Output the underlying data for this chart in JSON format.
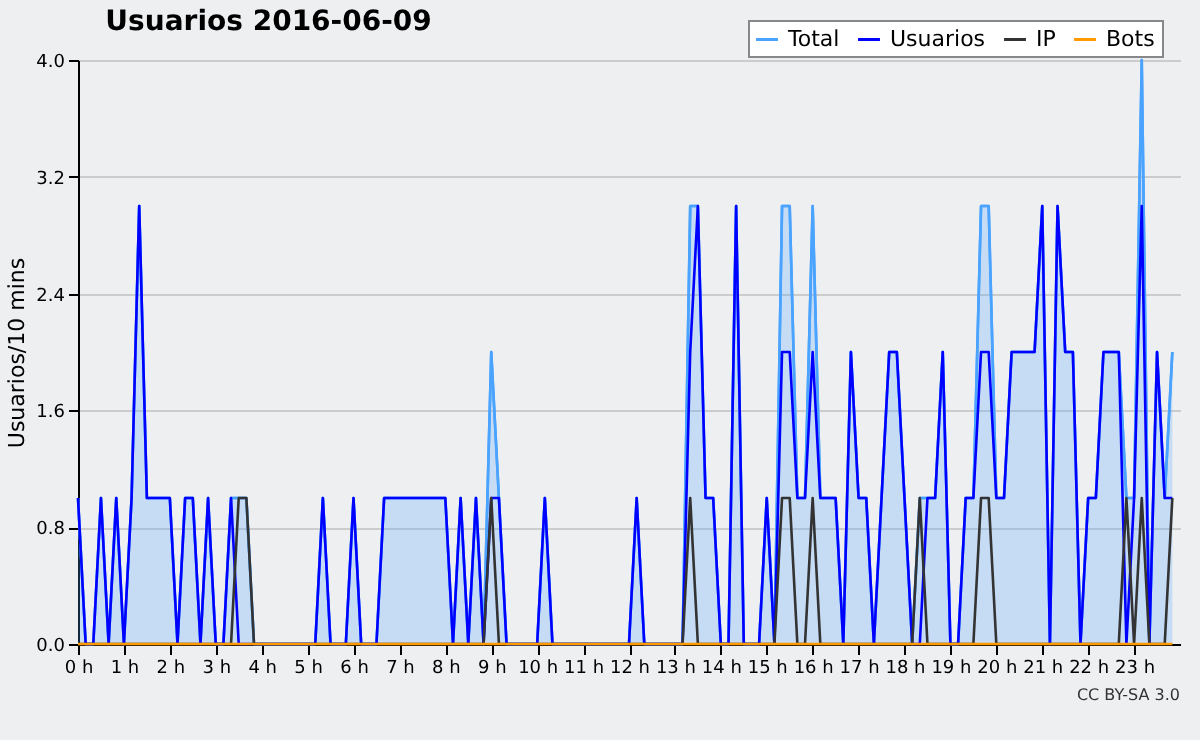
{
  "chart_data": {
    "type": "line",
    "title": "Usuarios  2016-06-09",
    "ylabel": "Usuarios/10 mins",
    "x": [
      0,
      0.167,
      0.333,
      0.5,
      0.667,
      0.833,
      1,
      1.167,
      1.333,
      1.5,
      1.667,
      1.833,
      2,
      2.167,
      2.333,
      2.5,
      2.667,
      2.833,
      3,
      3.167,
      3.333,
      3.5,
      3.667,
      3.833,
      4,
      4.167,
      4.333,
      4.5,
      4.667,
      4.833,
      5,
      5.167,
      5.333,
      5.5,
      5.667,
      5.833,
      6,
      6.167,
      6.333,
      6.5,
      6.667,
      6.833,
      7,
      7.167,
      7.333,
      7.5,
      7.667,
      7.833,
      8,
      8.167,
      8.333,
      8.5,
      8.667,
      8.833,
      9,
      9.167,
      9.333,
      9.5,
      9.667,
      9.833,
      10,
      10.167,
      10.333,
      10.5,
      10.667,
      10.833,
      11,
      11.167,
      11.333,
      11.5,
      11.667,
      11.833,
      12,
      12.167,
      12.333,
      12.5,
      12.667,
      12.833,
      13,
      13.167,
      13.333,
      13.5,
      13.667,
      13.833,
      14,
      14.167,
      14.333,
      14.5,
      14.667,
      14.833,
      15,
      15.167,
      15.333,
      15.5,
      15.667,
      15.833,
      16,
      16.167,
      16.333,
      16.5,
      16.667,
      16.833,
      17,
      17.167,
      17.333,
      17.5,
      17.667,
      17.833,
      18,
      18.167,
      18.333,
      18.5,
      18.667,
      18.833,
      19,
      19.167,
      19.333,
      19.5,
      19.667,
      19.833,
      20,
      20.167,
      20.333,
      20.5,
      20.667,
      20.833,
      21,
      21.167,
      21.333,
      21.5,
      21.667,
      21.833,
      22,
      22.167,
      22.333,
      22.5,
      22.667,
      22.833,
      23,
      23.167,
      23.333,
      23.5,
      23.667,
      23.833
    ],
    "series": [
      {
        "name": "Total",
        "type": "area",
        "color": "#4aa3ff",
        "values": [
          1,
          0,
          0,
          1,
          0,
          1,
          0,
          1,
          3,
          1,
          1,
          1,
          1,
          0,
          1,
          1,
          0,
          1,
          0,
          0,
          1,
          1,
          1,
          0,
          0,
          0,
          0,
          0,
          0,
          0,
          0,
          0,
          1,
          0,
          0,
          0,
          1,
          0,
          0,
          0,
          1,
          1,
          1,
          1,
          1,
          1,
          1,
          1,
          1,
          0,
          1,
          0,
          1,
          0,
          2,
          1,
          0,
          0,
          0,
          0,
          0,
          1,
          0,
          0,
          0,
          0,
          0,
          0,
          0,
          0,
          0,
          0,
          0,
          1,
          0,
          0,
          0,
          0,
          0,
          0,
          3,
          3,
          1,
          1,
          0,
          0,
          3,
          0,
          0,
          0,
          1,
          0,
          3,
          3,
          1,
          1,
          3,
          1,
          1,
          1,
          0,
          2,
          1,
          1,
          0,
          1,
          2,
          2,
          1,
          0,
          1,
          1,
          1,
          2,
          0,
          0,
          1,
          1,
          3,
          3,
          1,
          1,
          2,
          2,
          2,
          2,
          3,
          0,
          3,
          2,
          2,
          0,
          1,
          1,
          2,
          2,
          2,
          1,
          1,
          4,
          0,
          2,
          1,
          2
        ]
      },
      {
        "name": "Usuarios",
        "color": "#0000ff",
        "values": [
          1,
          0,
          0,
          1,
          0,
          1,
          0,
          1,
          3,
          1,
          1,
          1,
          1,
          0,
          1,
          1,
          0,
          1,
          0,
          0,
          1,
          0,
          0,
          0,
          0,
          0,
          0,
          0,
          0,
          0,
          0,
          0,
          1,
          0,
          0,
          0,
          1,
          0,
          0,
          0,
          1,
          1,
          1,
          1,
          1,
          1,
          1,
          1,
          1,
          0,
          1,
          0,
          1,
          0,
          1,
          1,
          0,
          0,
          0,
          0,
          0,
          1,
          0,
          0,
          0,
          0,
          0,
          0,
          0,
          0,
          0,
          0,
          0,
          1,
          0,
          0,
          0,
          0,
          0,
          0,
          2,
          3,
          1,
          1,
          0,
          0,
          3,
          0,
          0,
          0,
          1,
          0,
          2,
          2,
          1,
          1,
          2,
          1,
          1,
          1,
          0,
          2,
          1,
          1,
          0,
          1,
          2,
          2,
          1,
          0,
          0,
          1,
          1,
          2,
          0,
          0,
          1,
          1,
          2,
          2,
          1,
          1,
          2,
          2,
          2,
          2,
          3,
          0,
          3,
          2,
          2,
          0,
          1,
          1,
          2,
          2,
          2,
          0,
          1,
          3,
          0,
          2,
          1,
          1
        ]
      },
      {
        "name": "IP",
        "color": "#333333",
        "values": [
          0,
          0,
          0,
          0,
          0,
          0,
          0,
          0,
          0,
          0,
          0,
          0,
          0,
          0,
          0,
          0,
          0,
          0,
          0,
          0,
          0,
          1,
          1,
          0,
          0,
          0,
          0,
          0,
          0,
          0,
          0,
          0,
          0,
          0,
          0,
          0,
          0,
          0,
          0,
          0,
          0,
          0,
          0,
          0,
          0,
          0,
          0,
          0,
          0,
          0,
          0,
          0,
          0,
          0,
          1,
          0,
          0,
          0,
          0,
          0,
          0,
          0,
          0,
          0,
          0,
          0,
          0,
          0,
          0,
          0,
          0,
          0,
          0,
          0,
          0,
          0,
          0,
          0,
          0,
          0,
          1,
          0,
          0,
          0,
          0,
          0,
          0,
          0,
          0,
          0,
          0,
          0,
          1,
          1,
          0,
          0,
          1,
          0,
          0,
          0,
          0,
          0,
          0,
          0,
          0,
          0,
          0,
          0,
          0,
          0,
          1,
          0,
          0,
          0,
          0,
          0,
          0,
          0,
          1,
          1,
          0,
          0,
          0,
          0,
          0,
          0,
          0,
          0,
          0,
          0,
          0,
          0,
          0,
          0,
          0,
          0,
          0,
          1,
          0,
          1,
          0,
          0,
          0,
          1
        ]
      },
      {
        "name": "Bots",
        "color": "#ff9900",
        "values": [
          0,
          0,
          0,
          0,
          0,
          0,
          0,
          0,
          0,
          0,
          0,
          0,
          0,
          0,
          0,
          0,
          0,
          0,
          0,
          0,
          0,
          0,
          0,
          0,
          0,
          0,
          0,
          0,
          0,
          0,
          0,
          0,
          0,
          0,
          0,
          0,
          0,
          0,
          0,
          0,
          0,
          0,
          0,
          0,
          0,
          0,
          0,
          0,
          0,
          0,
          0,
          0,
          0,
          0,
          0,
          0,
          0,
          0,
          0,
          0,
          0,
          0,
          0,
          0,
          0,
          0,
          0,
          0,
          0,
          0,
          0,
          0,
          0,
          0,
          0,
          0,
          0,
          0,
          0,
          0,
          0,
          0,
          0,
          0,
          0,
          0,
          0,
          0,
          0,
          0,
          0,
          0,
          0,
          0,
          0,
          0,
          0,
          0,
          0,
          0,
          0,
          0,
          0,
          0,
          0,
          0,
          0,
          0,
          0,
          0,
          0,
          0,
          0,
          0,
          0,
          0,
          0,
          0,
          0,
          0,
          0,
          0,
          0,
          0,
          0,
          0,
          0,
          0,
          0,
          0,
          0,
          0,
          0,
          0,
          0,
          0,
          0,
          0,
          0,
          0,
          0,
          0,
          0,
          0
        ]
      }
    ],
    "xlim": [
      0,
      24
    ],
    "xticks": [
      {
        "value": 0,
        "label": "0 h"
      },
      {
        "value": 1,
        "label": "1 h"
      },
      {
        "value": 2,
        "label": "2 h"
      },
      {
        "value": 3,
        "label": "3 h"
      },
      {
        "value": 4,
        "label": "4 h"
      },
      {
        "value": 5,
        "label": "5 h"
      },
      {
        "value": 6,
        "label": "6 h"
      },
      {
        "value": 7,
        "label": "7 h"
      },
      {
        "value": 8,
        "label": "8 h"
      },
      {
        "value": 9,
        "label": "9 h"
      },
      {
        "value": 10,
        "label": "10 h"
      },
      {
        "value": 11,
        "label": "11 h"
      },
      {
        "value": 12,
        "label": "12 h"
      },
      {
        "value": 13,
        "label": "13 h"
      },
      {
        "value": 14,
        "label": "14 h"
      },
      {
        "value": 15,
        "label": "15 h"
      },
      {
        "value": 16,
        "label": "16 h"
      },
      {
        "value": 17,
        "label": "17 h"
      },
      {
        "value": 18,
        "label": "18 h"
      },
      {
        "value": 19,
        "label": "19 h"
      },
      {
        "value": 20,
        "label": "20 h"
      },
      {
        "value": 21,
        "label": "21 h"
      },
      {
        "value": 22,
        "label": "22 h"
      },
      {
        "value": 23,
        "label": "23 h"
      }
    ],
    "ylim": [
      0,
      4
    ],
    "yticks": [
      {
        "value": 0,
        "label": "0.0"
      },
      {
        "value": 0.8,
        "label": "0.8"
      },
      {
        "value": 1.6,
        "label": "1.6"
      },
      {
        "value": 2.4,
        "label": "2.4"
      },
      {
        "value": 3.2,
        "label": "3.2"
      },
      {
        "value": 4,
        "label": "4.0"
      }
    ],
    "grid": "y",
    "legend": "top right",
    "marker": "none",
    "line_style": "solid",
    "annotations": [
      "CC BY-SA 3.0"
    ]
  }
}
